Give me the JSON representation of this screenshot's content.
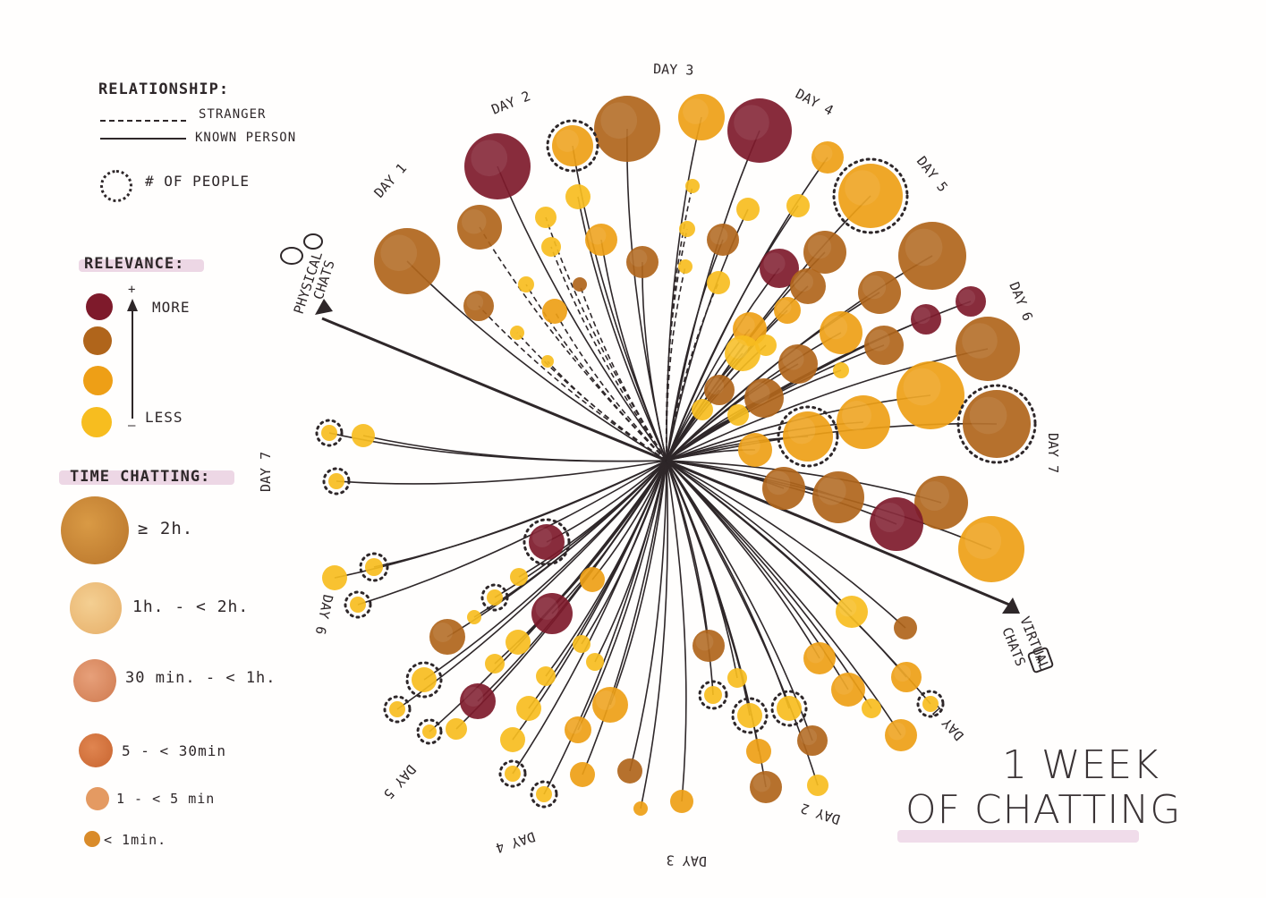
{
  "legend": {
    "relationship_title": "RELATIONSHIP:",
    "stranger_label": "STRANGER",
    "known_label": "KNOWN PERSON",
    "people_label": "# OF PEOPLE",
    "relevance_title": "RELEVANCE:",
    "relevance_plus": "+",
    "relevance_minus": "–",
    "relevance_more": "MORE",
    "relevance_less": "LESS",
    "relevance_colors": [
      "#7e1a2b",
      "#b0651b",
      "#ee9f16",
      "#f7bd1f"
    ],
    "time_title": "TIME CHATTING:",
    "time_items": [
      {
        "label": "≥ 2h.",
        "color": "#c98532"
      },
      {
        "label": "1h. - < 2h.",
        "color": "#edbd7a"
      },
      {
        "label": "30 min. - < 1h.",
        "color": "#db8a5e"
      },
      {
        "label": "5 - < 30min",
        "color": "#d5743d"
      },
      {
        "label": "1 - < 5 min",
        "color": "#e49a62"
      },
      {
        "label": "< 1min.",
        "color": "#d98b2a"
      }
    ]
  },
  "axes": {
    "physical_label_1": "PHYSICAL",
    "physical_label_2": "CHATS",
    "virtual_label_1": "VIRTUAL",
    "virtual_label_2": "CHATS"
  },
  "physical_days": [
    "DAY 1",
    "DAY 2",
    "DAY 3",
    "DAY 4",
    "DAY 5",
    "DAY 6",
    "DAY 7"
  ],
  "virtual_days": [
    "DAY 1",
    "DAY 2",
    "DAY 3",
    "DAY 4",
    "DAY 5",
    "DAY 6",
    "DAY 7"
  ],
  "title": {
    "line1": "1 WEEK",
    "line2": "OF CHATTING"
  },
  "colors": {
    "maroon": "#7e1a2b",
    "brown": "#b0651b",
    "orange": "#ee9f16",
    "yellow": "#f7bd1f",
    "ink": "#2e2729"
  }
}
